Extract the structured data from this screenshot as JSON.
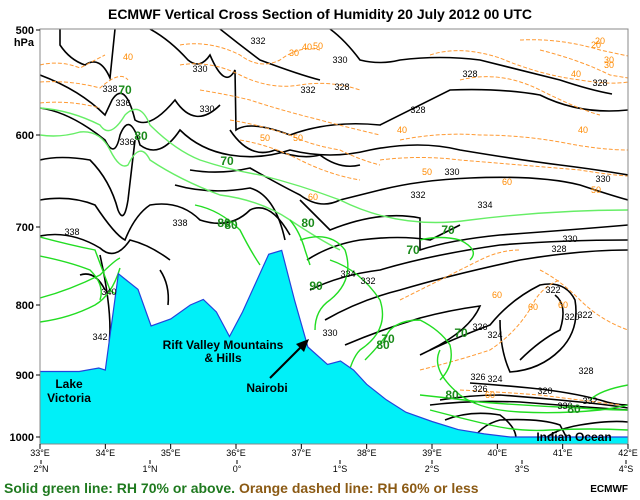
{
  "chart_data": {
    "type": "contour",
    "title": "ECMWF Vertical Cross Section of Humidity  20 July 2012 00 UTC",
    "ylabel": "hPa",
    "y_ticks": [
      "500",
      "600",
      "700",
      "800",
      "900",
      "1000"
    ],
    "ylim": [
      500,
      1000
    ],
    "x_ticks_lon": [
      "33°E",
      "34°E",
      "35°E",
      "36°E",
      "37°E",
      "38°E",
      "39°E",
      "40°E",
      "41°E",
      "42°E"
    ],
    "x_ticks_lat": [
      "2°N",
      "1°N",
      "0°",
      "1°S",
      "2°S",
      "3°S",
      "4°S"
    ],
    "xlim_lon": [
      33,
      42
    ],
    "theta_contour_labels": [
      "330",
      "330",
      "332",
      "332",
      "332",
      "330",
      "328",
      "328",
      "328",
      "328",
      "330",
      "330",
      "334",
      "336",
      "336",
      "338",
      "338",
      "340",
      "342",
      "334",
      "332",
      "330",
      "330",
      "328",
      "326",
      "324",
      "322",
      "320",
      "322",
      "326",
      "324",
      "326",
      "320",
      "328",
      "332",
      "330",
      "338"
    ],
    "rh_green_labels": [
      "70",
      "80",
      "70",
      "80",
      "80",
      "80",
      "70",
      "90",
      "80",
      "70",
      "70",
      "70",
      "80",
      "80"
    ],
    "rh_orange_labels": [
      "20",
      "30",
      "40",
      "40",
      "40",
      "50",
      "50",
      "60",
      "40",
      "50",
      "50",
      "60",
      "30",
      "40",
      "50",
      "60",
      "60",
      "60",
      "60",
      "20",
      "30"
    ],
    "terrain_profile": {
      "lon": [
        33.0,
        33.6,
        33.9,
        34.0,
        34.2,
        34.5,
        34.7,
        35.0,
        35.3,
        35.5,
        35.7,
        35.9,
        36.1,
        36.5,
        36.7,
        36.9,
        37.1,
        37.4,
        37.6,
        37.8,
        38.0,
        38.3,
        38.6,
        39.0,
        39.4,
        39.8,
        40.2,
        42.0
      ],
      "pressure_hPa": [
        895,
        895,
        890,
        893,
        760,
        780,
        830,
        820,
        800,
        793,
        810,
        845,
        810,
        735,
        730,
        795,
        860,
        885,
        880,
        893,
        915,
        940,
        960,
        975,
        988,
        995,
        1000,
        1000
      ]
    },
    "legend": {
      "green": "Solid green line: RH 70% or above.",
      "orange": "Orange dashed line: RH 60% or less"
    },
    "colors": {
      "theta": "#000000",
      "rh_high": "#22dd22",
      "rh_high_light": "#66ee66",
      "rh_low": "#ff9a33",
      "terrain_fill": "#00f0f8",
      "terrain_edge": "#2244dd"
    },
    "annotations": [
      "Lake Victoria",
      "Rift Valley Mountains & Hills",
      "Nairobi",
      "Indian Ocean"
    ]
  },
  "annotations": {
    "lake": [
      "Lake",
      "Victoria"
    ],
    "rift": [
      "Rift Valley Mountains",
      "& Hills"
    ],
    "nairobi": "Nairobi",
    "ocean": "Indian Ocean"
  },
  "footer": {
    "green_text": "Solid green line: RH 70% or above.",
    "orange_text": "Orange dashed line: RH 60% or less",
    "credit": "ECMWF"
  }
}
